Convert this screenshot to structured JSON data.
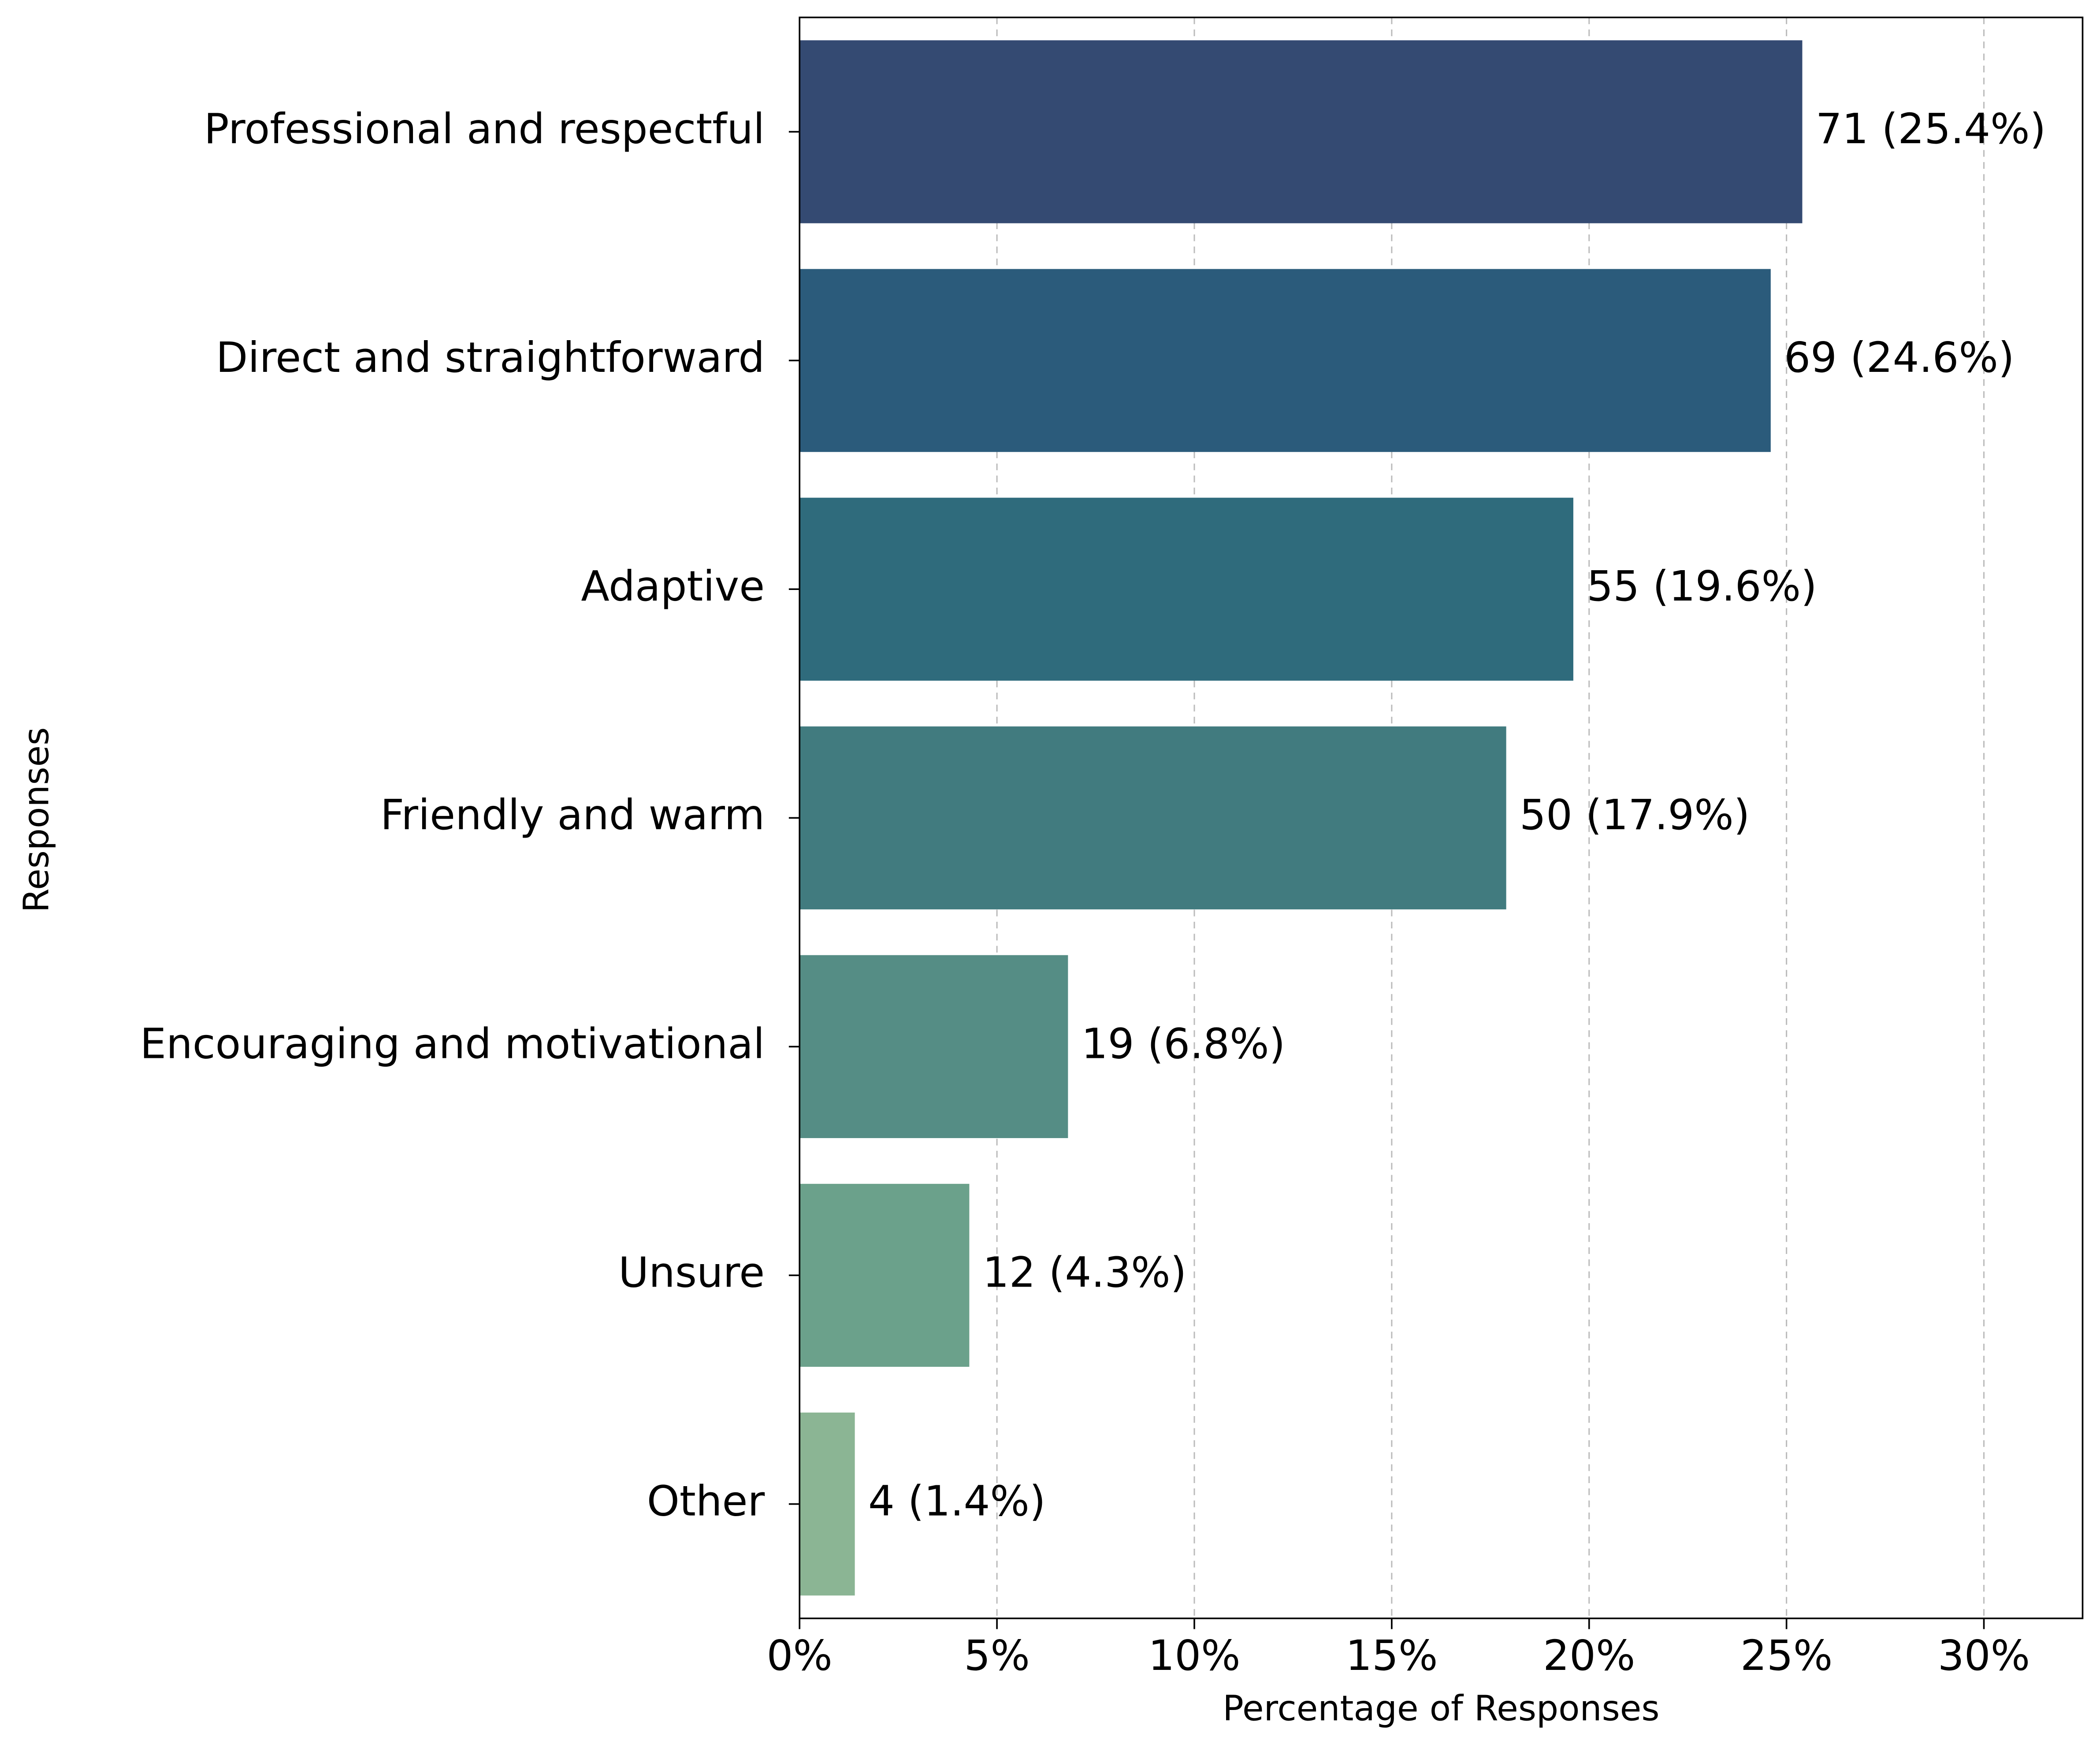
{
  "chart_data": {
    "type": "barh",
    "xlabel": "Percentage of Responses",
    "ylabel": "Responses",
    "categories": [
      "Professional and respectful",
      "Direct and straightforward",
      "Adaptive",
      "Friendly and warm",
      "Encouraging and motivational",
      "Unsure",
      "Other"
    ],
    "values": [
      25.4,
      24.6,
      19.6,
      17.9,
      6.8,
      4.3,
      1.4
    ],
    "value_labels": [
      "71 (25.4%)",
      "69 (24.6%)",
      "55 (19.6%)",
      "50 (17.9%)",
      "19 (6.8%)",
      "12 (4.3%)",
      "4 (1.4%)"
    ],
    "colors": [
      "#344a72",
      "#2b5b7b",
      "#2f6b7c",
      "#417b7f",
      "#558d85",
      "#6ba18b",
      "#8bb594"
    ],
    "xlim": [
      0,
      32.5
    ],
    "xticks": [
      {
        "value": 0,
        "label": "0%"
      },
      {
        "value": 5,
        "label": "5%"
      },
      {
        "value": 10,
        "label": "10%"
      },
      {
        "value": 15,
        "label": "15%"
      },
      {
        "value": 20,
        "label": "20%"
      },
      {
        "value": 25,
        "label": "25%"
      },
      {
        "value": 30,
        "label": "30%"
      }
    ],
    "grid": true
  }
}
